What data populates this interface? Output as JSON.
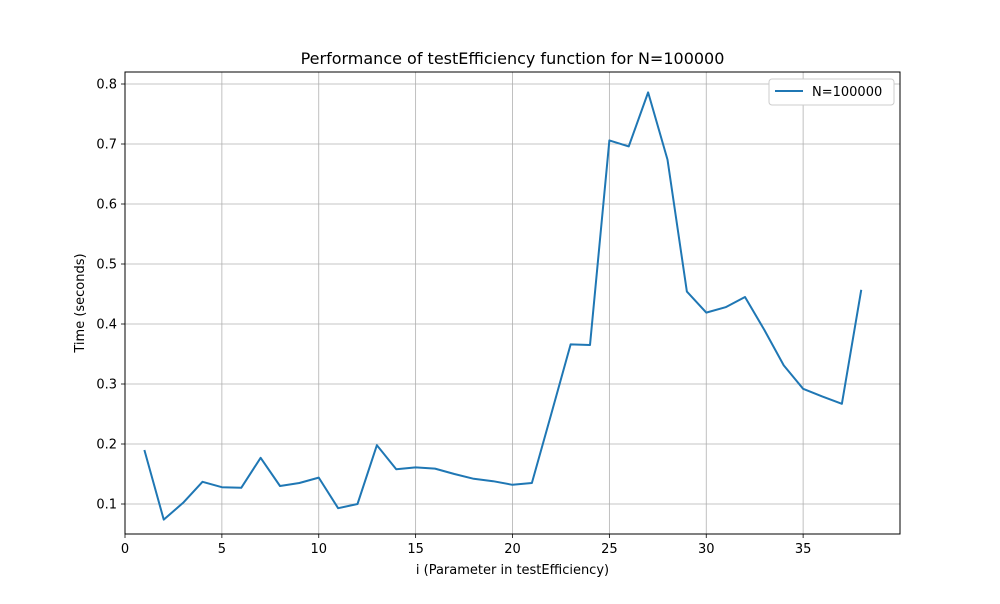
{
  "chart_data": {
    "type": "line",
    "title": "Performance of testEfficiency function for N=100000",
    "xlabel": "i (Parameter in testEfficiency)",
    "ylabel": "Time (seconds)",
    "xlim": [
      0,
      40
    ],
    "ylim": [
      0.05,
      0.82
    ],
    "xticks": [
      0,
      5,
      10,
      15,
      20,
      25,
      30,
      35
    ],
    "yticks": [
      0.1,
      0.2,
      0.3,
      0.4,
      0.5,
      0.6,
      0.7,
      0.8
    ],
    "x_tick_labels": [
      "0",
      "5",
      "10",
      "15",
      "20",
      "25",
      "30",
      "35"
    ],
    "y_tick_labels": [
      "0.1",
      "0.2",
      "0.3",
      "0.4",
      "0.5",
      "0.6",
      "0.7",
      "0.8"
    ],
    "grid": true,
    "legend_position": "top-right",
    "series": [
      {
        "name": "N=100000",
        "color": "#1f77b4",
        "x": [
          1,
          2,
          3,
          4,
          5,
          6,
          7,
          8,
          9,
          10,
          11,
          12,
          13,
          14,
          15,
          16,
          17,
          18,
          19,
          20,
          21,
          22,
          23,
          24,
          25,
          26,
          27,
          28,
          29,
          30,
          31,
          32,
          33,
          34,
          35,
          36,
          37,
          38
        ],
        "y": [
          0.19,
          0.074,
          0.102,
          0.137,
          0.128,
          0.127,
          0.177,
          0.13,
          0.135,
          0.144,
          0.093,
          0.1,
          0.198,
          0.158,
          0.161,
          0.159,
          0.15,
          0.142,
          0.138,
          0.132,
          0.135,
          0.25,
          0.366,
          0.365,
          0.706,
          0.696,
          0.786,
          0.674,
          0.454,
          0.419,
          0.428,
          0.445,
          0.39,
          0.331,
          0.292,
          0.279,
          0.267,
          0.457
        ]
      }
    ]
  }
}
